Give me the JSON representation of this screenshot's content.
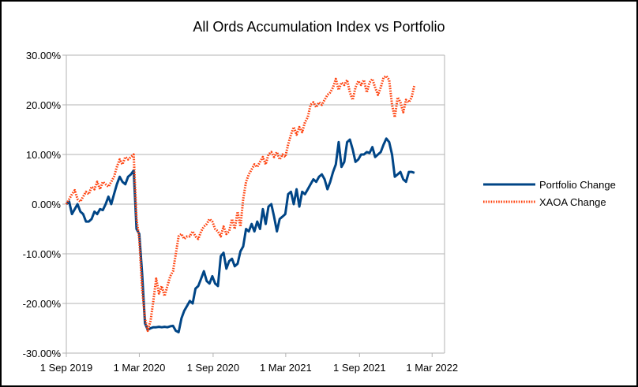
{
  "chart_data": {
    "type": "line",
    "title": "All Ords Accumulation Index vs Portfolio",
    "xlabel": "",
    "ylabel": "",
    "x_ticks": [
      "1 Sep 2019",
      "1 Mar 2020",
      "1 Sep 2020",
      "1 Mar 2021",
      "1 Sep 2021",
      "1 Mar 2022"
    ],
    "y_ticks": [
      "30.00%",
      "20.00%",
      "10.00%",
      "0.00%",
      "-10.00%",
      "-20.00%",
      "-30.00%"
    ],
    "ylim": [
      -30,
      30
    ],
    "xlim": [
      "2019-09-01",
      "2022-04-01"
    ],
    "grid": "horizontal",
    "legend_position": "right",
    "series": [
      {
        "name": "Portfolio Change",
        "color": "#004586",
        "style": "solid",
        "points": [
          [
            "2019-09-01",
            0
          ],
          [
            "2019-09-08",
            0.5
          ],
          [
            "2019-09-15",
            -2
          ],
          [
            "2019-09-22",
            -1
          ],
          [
            "2019-09-29",
            0
          ],
          [
            "2019-10-06",
            -1.5
          ],
          [
            "2019-10-13",
            -2
          ],
          [
            "2019-10-20",
            -3.5
          ],
          [
            "2019-10-27",
            -3.5
          ],
          [
            "2019-11-03",
            -3
          ],
          [
            "2019-11-10",
            -1.5
          ],
          [
            "2019-11-17",
            -2
          ],
          [
            "2019-11-24",
            -1
          ],
          [
            "2019-12-01",
            -1.2
          ],
          [
            "2019-12-08",
            0
          ],
          [
            "2019-12-15",
            1.5
          ],
          [
            "2019-12-22",
            0
          ],
          [
            "2019-12-29",
            2
          ],
          [
            "2020-01-05",
            4
          ],
          [
            "2020-01-12",
            5.5
          ],
          [
            "2020-01-19",
            4.5
          ],
          [
            "2020-01-26",
            4
          ],
          [
            "2020-02-02",
            5.5
          ],
          [
            "2020-02-09",
            6
          ],
          [
            "2020-02-16",
            6.8
          ],
          [
            "2020-02-23",
            -5
          ],
          [
            "2020-03-01",
            -6
          ],
          [
            "2020-03-08",
            -14
          ],
          [
            "2020-03-15",
            -24
          ],
          [
            "2020-03-22",
            -25.3
          ],
          [
            "2020-03-29",
            -25
          ],
          [
            "2020-04-05",
            -24.8
          ],
          [
            "2020-04-12",
            -24.8
          ],
          [
            "2020-04-19",
            -24.7
          ],
          [
            "2020-04-26",
            -24.8
          ],
          [
            "2020-05-03",
            -24.7
          ],
          [
            "2020-05-10",
            -24.8
          ],
          [
            "2020-05-17",
            -24.6
          ],
          [
            "2020-05-24",
            -24.5
          ],
          [
            "2020-05-31",
            -25.5
          ],
          [
            "2020-06-07",
            -25.8
          ],
          [
            "2020-06-14",
            -23
          ],
          [
            "2020-06-21",
            -21.5
          ],
          [
            "2020-06-28",
            -20.5
          ],
          [
            "2020-07-05",
            -19.5
          ],
          [
            "2020-07-12",
            -20
          ],
          [
            "2020-07-19",
            -17
          ],
          [
            "2020-07-26",
            -16.5
          ],
          [
            "2020-08-02",
            -15
          ],
          [
            "2020-08-09",
            -13.5
          ],
          [
            "2020-08-16",
            -15.5
          ],
          [
            "2020-08-23",
            -16
          ],
          [
            "2020-08-30",
            -14.5
          ],
          [
            "2020-09-06",
            -16
          ],
          [
            "2020-09-13",
            -16.5
          ],
          [
            "2020-09-20",
            -10.5
          ],
          [
            "2020-09-27",
            -9.8
          ],
          [
            "2020-10-04",
            -13
          ],
          [
            "2020-10-11",
            -11.5
          ],
          [
            "2020-10-18",
            -11
          ],
          [
            "2020-10-25",
            -12.5
          ],
          [
            "2020-11-01",
            -12
          ],
          [
            "2020-11-08",
            -9.5
          ],
          [
            "2020-11-15",
            -8.5
          ],
          [
            "2020-11-22",
            -5
          ],
          [
            "2020-11-29",
            -5.5
          ],
          [
            "2020-12-06",
            -4
          ],
          [
            "2020-12-13",
            -5.5
          ],
          [
            "2020-12-20",
            -3.5
          ],
          [
            "2020-12-27",
            -5
          ],
          [
            "2021-01-03",
            -1
          ],
          [
            "2021-01-10",
            -4
          ],
          [
            "2021-01-17",
            -0.5
          ],
          [
            "2021-01-24",
            0
          ],
          [
            "2021-01-31",
            -2.5
          ],
          [
            "2021-02-07",
            -5.5
          ],
          [
            "2021-02-14",
            -3
          ],
          [
            "2021-02-21",
            -2.5
          ],
          [
            "2021-02-28",
            -2
          ],
          [
            "2021-03-07",
            2
          ],
          [
            "2021-03-14",
            2.5
          ],
          [
            "2021-03-21",
            0
          ],
          [
            "2021-03-28",
            3
          ],
          [
            "2021-04-04",
            -0.5
          ],
          [
            "2021-04-11",
            2.5
          ],
          [
            "2021-04-18",
            2
          ],
          [
            "2021-04-25",
            3
          ],
          [
            "2021-05-02",
            4
          ],
          [
            "2021-05-09",
            5
          ],
          [
            "2021-05-16",
            4.5
          ],
          [
            "2021-05-23",
            5.5
          ],
          [
            "2021-05-30",
            6
          ],
          [
            "2021-06-06",
            5
          ],
          [
            "2021-06-13",
            3
          ],
          [
            "2021-06-20",
            4.5
          ],
          [
            "2021-06-27",
            6.5
          ],
          [
            "2021-07-04",
            8
          ],
          [
            "2021-07-11",
            12.5
          ],
          [
            "2021-07-18",
            7.5
          ],
          [
            "2021-07-25",
            8.5
          ],
          [
            "2021-08-01",
            12.5
          ],
          [
            "2021-08-08",
            13
          ],
          [
            "2021-08-15",
            11
          ],
          [
            "2021-08-22",
            8.5
          ],
          [
            "2021-08-29",
            9
          ],
          [
            "2021-09-05",
            10
          ],
          [
            "2021-09-12",
            10
          ],
          [
            "2021-09-19",
            10.5
          ],
          [
            "2021-09-26",
            10.3
          ],
          [
            "2021-10-03",
            11.5
          ],
          [
            "2021-10-10",
            9.5
          ],
          [
            "2021-10-17",
            10
          ],
          [
            "2021-10-24",
            10.5
          ],
          [
            "2021-10-31",
            12
          ],
          [
            "2021-11-07",
            13.2
          ],
          [
            "2021-11-14",
            12.5
          ],
          [
            "2021-11-21",
            10
          ],
          [
            "2021-11-28",
            5.5
          ],
          [
            "2021-12-05",
            6
          ],
          [
            "2021-12-12",
            6.5
          ],
          [
            "2021-12-19",
            5
          ],
          [
            "2021-12-26",
            4.5
          ],
          [
            "2022-01-02",
            6.5
          ],
          [
            "2022-01-09",
            6.5
          ],
          [
            "2022-01-16",
            6.3
          ]
        ]
      },
      {
        "name": "XAOA Change",
        "color": "#ff420e",
        "style": "dotted",
        "points": [
          [
            "2019-09-01",
            0
          ],
          [
            "2019-09-08",
            1
          ],
          [
            "2019-09-15",
            2
          ],
          [
            "2019-09-22",
            2.8
          ],
          [
            "2019-09-29",
            1
          ],
          [
            "2019-10-06",
            0.5
          ],
          [
            "2019-10-13",
            1.5
          ],
          [
            "2019-10-20",
            2.5
          ],
          [
            "2019-10-27",
            2
          ],
          [
            "2019-11-03",
            3.5
          ],
          [
            "2019-11-10",
            3
          ],
          [
            "2019-11-17",
            4.5
          ],
          [
            "2019-11-24",
            3
          ],
          [
            "2019-12-01",
            4.5
          ],
          [
            "2019-12-08",
            4
          ],
          [
            "2019-12-15",
            3.5
          ],
          [
            "2019-12-22",
            4.5
          ],
          [
            "2019-12-29",
            5.5
          ],
          [
            "2020-01-05",
            7.5
          ],
          [
            "2020-01-12",
            9
          ],
          [
            "2020-01-19",
            8
          ],
          [
            "2020-01-26",
            9.5
          ],
          [
            "2020-02-02",
            9
          ],
          [
            "2020-02-09",
            9.5
          ],
          [
            "2020-02-16",
            10
          ],
          [
            "2020-02-23",
            -3
          ],
          [
            "2020-03-01",
            -7
          ],
          [
            "2020-03-08",
            -17
          ],
          [
            "2020-03-15",
            -23
          ],
          [
            "2020-03-22",
            -25.5
          ],
          [
            "2020-03-29",
            -23.5
          ],
          [
            "2020-04-05",
            -19.5
          ],
          [
            "2020-04-12",
            -15
          ],
          [
            "2020-04-19",
            -18
          ],
          [
            "2020-04-26",
            -16.5
          ],
          [
            "2020-05-03",
            -18.5
          ],
          [
            "2020-05-10",
            -16.5
          ],
          [
            "2020-05-17",
            -14.5
          ],
          [
            "2020-05-24",
            -13.5
          ],
          [
            "2020-05-31",
            -10
          ],
          [
            "2020-06-07",
            -6.5
          ],
          [
            "2020-06-14",
            -6
          ],
          [
            "2020-06-21",
            -7
          ],
          [
            "2020-06-28",
            -6.5
          ],
          [
            "2020-07-05",
            -6.5
          ],
          [
            "2020-07-12",
            -5.5
          ],
          [
            "2020-07-19",
            -6.5
          ],
          [
            "2020-07-26",
            -7
          ],
          [
            "2020-08-02",
            -5.5
          ],
          [
            "2020-08-09",
            -4.5
          ],
          [
            "2020-08-16",
            -4
          ],
          [
            "2020-08-23",
            -3
          ],
          [
            "2020-08-30",
            -3.5
          ],
          [
            "2020-09-06",
            -5
          ],
          [
            "2020-09-13",
            -5.5
          ],
          [
            "2020-09-20",
            -6.5
          ],
          [
            "2020-09-27",
            -4.5
          ],
          [
            "2020-10-04",
            -6
          ],
          [
            "2020-10-11",
            -5.5
          ],
          [
            "2020-10-18",
            -3
          ],
          [
            "2020-10-25",
            -5
          ],
          [
            "2020-11-01",
            -1.5
          ],
          [
            "2020-11-08",
            -4.5
          ],
          [
            "2020-11-15",
            1
          ],
          [
            "2020-11-22",
            4.5
          ],
          [
            "2020-11-29",
            6
          ],
          [
            "2020-12-06",
            7
          ],
          [
            "2020-12-13",
            8
          ],
          [
            "2020-12-20",
            7.5
          ],
          [
            "2020-12-27",
            8.5
          ],
          [
            "2021-01-03",
            9.5
          ],
          [
            "2021-01-10",
            8
          ],
          [
            "2021-01-17",
            10
          ],
          [
            "2021-01-24",
            10.5
          ],
          [
            "2021-01-31",
            9.5
          ],
          [
            "2021-02-07",
            10.5
          ],
          [
            "2021-02-14",
            9
          ],
          [
            "2021-02-21",
            10
          ],
          [
            "2021-02-28",
            9.5
          ],
          [
            "2021-03-07",
            12
          ],
          [
            "2021-03-14",
            14
          ],
          [
            "2021-03-21",
            15.5
          ],
          [
            "2021-03-28",
            14
          ],
          [
            "2021-04-04",
            15.5
          ],
          [
            "2021-04-11",
            14.5
          ],
          [
            "2021-04-18",
            16.5
          ],
          [
            "2021-04-25",
            17.5
          ],
          [
            "2021-05-02",
            20
          ],
          [
            "2021-05-09",
            20.5
          ],
          [
            "2021-05-16",
            19.5
          ],
          [
            "2021-05-23",
            20.5
          ],
          [
            "2021-05-30",
            20
          ],
          [
            "2021-06-06",
            21
          ],
          [
            "2021-06-13",
            22
          ],
          [
            "2021-06-20",
            22.5
          ],
          [
            "2021-06-27",
            23.5
          ],
          [
            "2021-07-04",
            25.2
          ],
          [
            "2021-07-11",
            23
          ],
          [
            "2021-07-18",
            24.5
          ],
          [
            "2021-07-25",
            24
          ],
          [
            "2021-08-01",
            25
          ],
          [
            "2021-08-08",
            22.5
          ],
          [
            "2021-08-15",
            21
          ],
          [
            "2021-08-22",
            23.5
          ],
          [
            "2021-08-29",
            24.8
          ],
          [
            "2021-09-05",
            24
          ],
          [
            "2021-09-12",
            25
          ],
          [
            "2021-09-19",
            22.5
          ],
          [
            "2021-09-26",
            24.5
          ],
          [
            "2021-10-03",
            25.2
          ],
          [
            "2021-10-10",
            23.5
          ],
          [
            "2021-10-17",
            22
          ],
          [
            "2021-10-24",
            23.5
          ],
          [
            "2021-10-31",
            25.5
          ],
          [
            "2021-11-07",
            25.8
          ],
          [
            "2021-11-14",
            25
          ],
          [
            "2021-11-21",
            20
          ],
          [
            "2021-11-28",
            17.5
          ],
          [
            "2021-12-05",
            21.5
          ],
          [
            "2021-12-12",
            20.5
          ],
          [
            "2021-12-19",
            18.5
          ],
          [
            "2021-12-26",
            21
          ],
          [
            "2022-01-02",
            20.5
          ],
          [
            "2022-01-09",
            21.5
          ],
          [
            "2022-01-16",
            24
          ]
        ]
      }
    ]
  }
}
